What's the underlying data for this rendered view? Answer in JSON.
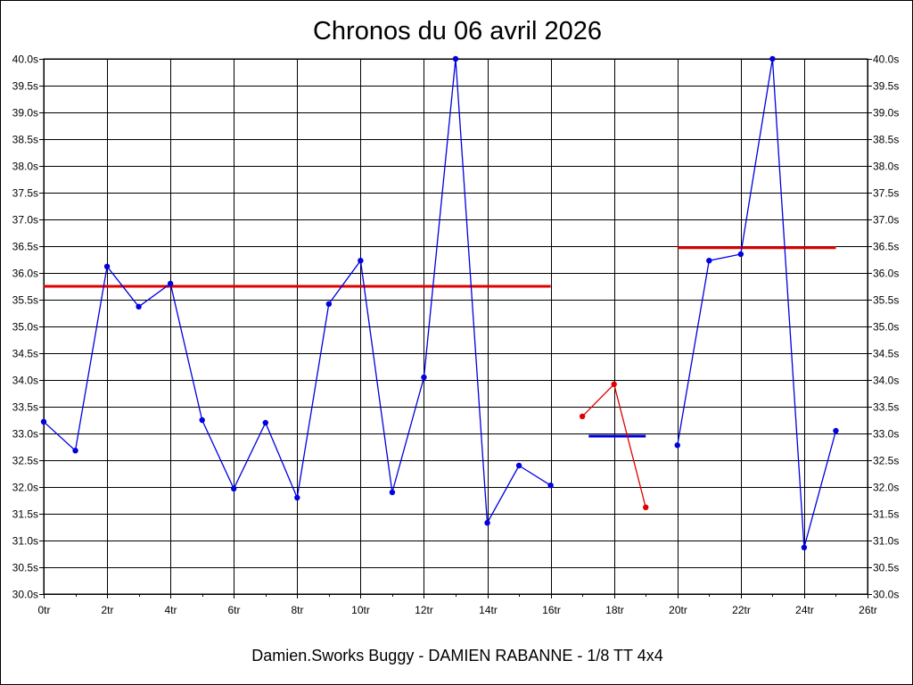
{
  "chart_data": {
    "type": "line",
    "title": "Chronos du 06 avril 2026",
    "subtitle": "Damien.Sworks Buggy - DAMIEN RABANNE - 1/8 TT 4x4",
    "xlim": [
      0,
      26
    ],
    "ylim": [
      30.0,
      40.0
    ],
    "grid": true,
    "x_ticks": [
      "0tr",
      "2tr",
      "4tr",
      "6tr",
      "8tr",
      "10tr",
      "12tr",
      "14tr",
      "16tr",
      "18tr",
      "20tr",
      "22tr",
      "24tr",
      "26tr"
    ],
    "y_ticks": [
      "30.0s",
      "30.5s",
      "31.0s",
      "31.5s",
      "32.0s",
      "32.5s",
      "33.0s",
      "33.5s",
      "34.0s",
      "34.5s",
      "35.0s",
      "35.5s",
      "36.0s",
      "36.5s",
      "37.0s",
      "37.5s",
      "38.0s",
      "38.5s",
      "39.0s",
      "39.5s",
      "40.0s"
    ],
    "series": [
      {
        "color": "#0000e0",
        "points": [
          [
            0,
            33.22
          ],
          [
            1,
            32.68
          ],
          [
            2,
            36.12
          ],
          [
            3,
            35.37
          ],
          [
            4,
            35.8
          ],
          [
            5,
            33.25
          ],
          [
            6,
            31.97
          ],
          [
            7,
            33.2
          ],
          [
            8,
            31.8
          ],
          [
            9,
            35.42
          ],
          [
            10,
            36.23
          ],
          [
            11,
            31.9
          ],
          [
            12,
            34.05
          ],
          [
            13,
            40.0
          ],
          [
            14,
            31.33
          ],
          [
            15,
            32.4
          ],
          [
            16,
            32.03
          ]
        ]
      },
      {
        "color": "#e00000",
        "points": [
          [
            17,
            33.32
          ],
          [
            18,
            33.92
          ],
          [
            19,
            31.62
          ]
        ]
      },
      {
        "color": "#0000e0",
        "points": [
          [
            20,
            32.78
          ],
          [
            21,
            36.23
          ],
          [
            22,
            36.35
          ],
          [
            23,
            40.0
          ],
          [
            24,
            30.87
          ],
          [
            25,
            33.05
          ]
        ]
      }
    ],
    "averages": [
      {
        "x": [
          0,
          16
        ],
        "y": 35.75,
        "color": "#e00000"
      },
      {
        "x": [
          17.2,
          19
        ],
        "y": 32.95,
        "color": "#0000e0"
      },
      {
        "x": [
          20,
          25
        ],
        "y": 36.47,
        "color": "#e00000"
      }
    ]
  }
}
